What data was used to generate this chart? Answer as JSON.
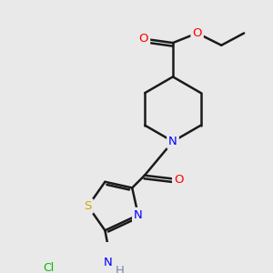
{
  "bg_color": "#e9e9e9",
  "atom_colors": {
    "C": "#000000",
    "N": "#0000ff",
    "O": "#ff0000",
    "S": "#ccaa00",
    "Cl": "#00bb00",
    "H": "#7788aa"
  },
  "bond_color": "#1a1a1a",
  "bond_width": 1.8,
  "font_size_atom": 9.5,
  "bg_hex": "#e9e9e9"
}
